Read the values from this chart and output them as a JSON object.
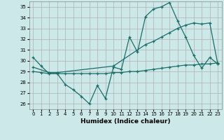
{
  "xlabel": "Humidex (Indice chaleur)",
  "background_color": "#cce8e8",
  "grid_color": "#b0b0b0",
  "line_color": "#1a6e6a",
  "xlim": [
    -0.5,
    23.5
  ],
  "ylim": [
    25.5,
    35.5
  ],
  "xticks": [
    0,
    1,
    2,
    3,
    4,
    5,
    6,
    7,
    8,
    9,
    10,
    11,
    12,
    13,
    14,
    15,
    16,
    17,
    18,
    19,
    20,
    21,
    22,
    23
  ],
  "yticks": [
    26,
    27,
    28,
    29,
    30,
    31,
    32,
    33,
    34,
    35
  ],
  "series1_x": [
    0,
    1,
    2,
    3,
    4,
    5,
    6,
    7,
    8,
    9,
    10,
    11,
    12,
    13,
    14,
    15,
    16,
    17,
    18,
    19,
    20,
    21,
    22,
    23
  ],
  "series1_y": [
    30.3,
    29.5,
    28.8,
    28.8,
    27.8,
    27.3,
    26.7,
    26.0,
    27.7,
    26.5,
    29.4,
    29.2,
    32.2,
    30.8,
    34.1,
    34.8,
    35.0,
    35.4,
    33.7,
    32.2,
    30.5,
    29.3,
    30.3,
    29.7
  ],
  "series2_x": [
    0,
    2,
    3,
    10,
    14,
    15,
    16,
    17,
    18,
    19,
    20,
    21,
    22,
    23
  ],
  "series2_y": [
    29.4,
    28.9,
    28.9,
    29.5,
    31.5,
    31.8,
    32.2,
    32.6,
    33.0,
    33.3,
    33.5,
    33.4,
    33.5,
    29.7
  ],
  "series3_x": [
    0,
    1,
    2,
    3,
    4,
    5,
    6,
    7,
    8,
    9,
    10,
    11,
    12,
    13,
    14,
    15,
    16,
    17,
    18,
    19,
    20,
    21,
    22,
    23
  ],
  "series3_y": [
    29.0,
    28.9,
    28.8,
    28.8,
    28.8,
    28.8,
    28.8,
    28.8,
    28.8,
    28.8,
    28.9,
    28.9,
    29.0,
    29.0,
    29.1,
    29.2,
    29.3,
    29.4,
    29.5,
    29.6,
    29.6,
    29.7,
    29.7,
    29.8
  ]
}
